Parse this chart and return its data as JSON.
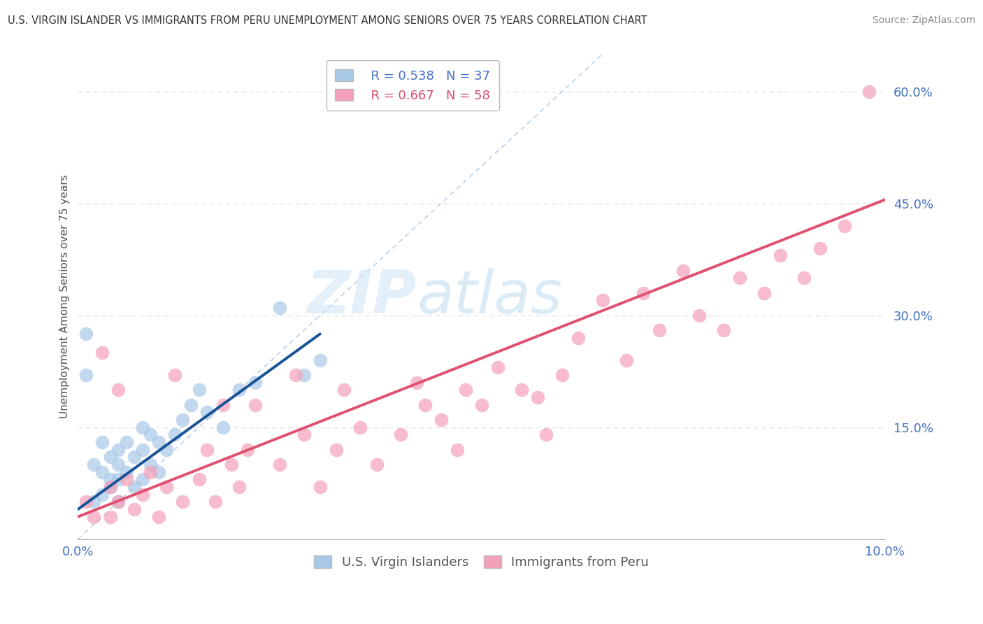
{
  "title": "U.S. VIRGIN ISLANDER VS IMMIGRANTS FROM PERU UNEMPLOYMENT AMONG SENIORS OVER 75 YEARS CORRELATION CHART",
  "source": "Source: ZipAtlas.com",
  "ylabel": "Unemployment Among Seniors over 75 years",
  "xlim": [
    0.0,
    0.1
  ],
  "ylim": [
    0.0,
    0.65
  ],
  "xticks": [
    0.0,
    0.02,
    0.04,
    0.06,
    0.08,
    0.1
  ],
  "yticks_right": [
    0.0,
    0.15,
    0.3,
    0.45,
    0.6
  ],
  "yticklabels_right": [
    "",
    "15.0%",
    "30.0%",
    "45.0%",
    "60.0%"
  ],
  "watermark_zip": "ZIP",
  "watermark_atlas": "atlas",
  "blue_R": "R = 0.538",
  "blue_N": "N = 37",
  "pink_R": "R = 0.667",
  "pink_N": "N = 58",
  "blue_scatter_color": "#a8c8e8",
  "blue_line_color": "#1a5296",
  "pink_scatter_color": "#f4a0b8",
  "pink_line_color": "#e05070",
  "identity_line_color": "#99bbdd",
  "grid_color": "#dddddd",
  "background_color": "#ffffff",
  "blue_scatter_x": [
    0.001,
    0.001,
    0.002,
    0.002,
    0.003,
    0.003,
    0.003,
    0.004,
    0.004,
    0.004,
    0.005,
    0.005,
    0.005,
    0.005,
    0.006,
    0.006,
    0.007,
    0.007,
    0.008,
    0.008,
    0.008,
    0.009,
    0.009,
    0.01,
    0.01,
    0.011,
    0.012,
    0.013,
    0.014,
    0.015,
    0.016,
    0.018,
    0.02,
    0.022,
    0.025,
    0.028,
    0.03
  ],
  "blue_scatter_y": [
    0.275,
    0.22,
    0.05,
    0.1,
    0.06,
    0.09,
    0.13,
    0.07,
    0.11,
    0.08,
    0.05,
    0.08,
    0.1,
    0.12,
    0.09,
    0.13,
    0.07,
    0.11,
    0.08,
    0.12,
    0.15,
    0.1,
    0.14,
    0.09,
    0.13,
    0.12,
    0.14,
    0.16,
    0.18,
    0.2,
    0.17,
    0.15,
    0.2,
    0.21,
    0.31,
    0.22,
    0.24
  ],
  "pink_scatter_x": [
    0.001,
    0.002,
    0.003,
    0.004,
    0.004,
    0.005,
    0.005,
    0.006,
    0.007,
    0.008,
    0.009,
    0.01,
    0.011,
    0.012,
    0.013,
    0.015,
    0.016,
    0.017,
    0.018,
    0.019,
    0.02,
    0.021,
    0.022,
    0.025,
    0.027,
    0.028,
    0.03,
    0.032,
    0.033,
    0.035,
    0.037,
    0.04,
    0.042,
    0.043,
    0.045,
    0.047,
    0.048,
    0.05,
    0.052,
    0.055,
    0.057,
    0.058,
    0.06,
    0.062,
    0.065,
    0.068,
    0.07,
    0.072,
    0.075,
    0.077,
    0.08,
    0.082,
    0.085,
    0.087,
    0.09,
    0.092,
    0.095,
    0.098
  ],
  "pink_scatter_y": [
    0.05,
    0.03,
    0.25,
    0.07,
    0.03,
    0.05,
    0.2,
    0.08,
    0.04,
    0.06,
    0.09,
    0.03,
    0.07,
    0.22,
    0.05,
    0.08,
    0.12,
    0.05,
    0.18,
    0.1,
    0.07,
    0.12,
    0.18,
    0.1,
    0.22,
    0.14,
    0.07,
    0.12,
    0.2,
    0.15,
    0.1,
    0.14,
    0.21,
    0.18,
    0.16,
    0.12,
    0.2,
    0.18,
    0.23,
    0.2,
    0.19,
    0.14,
    0.22,
    0.27,
    0.32,
    0.24,
    0.33,
    0.28,
    0.36,
    0.3,
    0.28,
    0.35,
    0.33,
    0.38,
    0.35,
    0.39,
    0.42,
    0.6
  ],
  "blue_line_x": [
    0.0,
    0.03
  ],
  "blue_line_y": [
    0.04,
    0.275
  ],
  "pink_line_x": [
    0.0,
    0.1
  ],
  "pink_line_y": [
    0.03,
    0.455
  ],
  "identity_line_x": [
    0.0,
    0.065
  ],
  "identity_line_y": [
    0.0,
    0.65
  ]
}
